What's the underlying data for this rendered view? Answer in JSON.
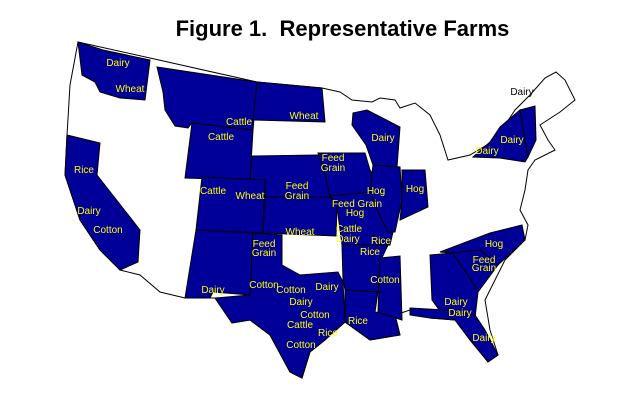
{
  "title": "Figure 1.  Representative Farms",
  "colors": {
    "highlight_state": "#000099",
    "other_state": "#ffffff",
    "border": "#000000",
    "label_on_highlight": "#ffff00",
    "label_on_white": "#000000"
  },
  "highlighted_states": [
    "WA",
    "MT",
    "ND",
    "WY",
    "NE",
    "CO",
    "KS",
    "NM",
    "TX",
    "IA",
    "MO",
    "AR",
    "LA",
    "MS",
    "WI",
    "IL",
    "IN",
    "NY",
    "VT",
    "NC",
    "SC",
    "GA",
    "FL",
    "CA"
  ],
  "labels": [
    {
      "text": "Dairy",
      "state": "WA"
    },
    {
      "text": "Wheat",
      "state": "WA"
    },
    {
      "text": "Cattle",
      "state": "MT"
    },
    {
      "text": "Cattle",
      "state": "WY"
    },
    {
      "text": "Wheat",
      "state": "ND"
    },
    {
      "text": "Feed",
      "state": "IA"
    },
    {
      "text": "Grain",
      "state": "IA"
    },
    {
      "text": "Feed",
      "state": "NE"
    },
    {
      "text": "Grain",
      "state": "NE"
    },
    {
      "text": "Rice",
      "state": "CA"
    },
    {
      "text": "Dairy",
      "state": "CA"
    },
    {
      "text": "Cotton",
      "state": "CA"
    },
    {
      "text": "Cattle",
      "state": "CO"
    },
    {
      "text": "Wheat",
      "state": "CO"
    },
    {
      "text": "Wheat",
      "state": "KS"
    },
    {
      "text": "Dairy",
      "state": "WI"
    },
    {
      "text": "Hog",
      "state": "IL"
    },
    {
      "text": "Hog",
      "state": "IN"
    },
    {
      "text": "Feed Grain",
      "state": "MO"
    },
    {
      "text": "Hog",
      "state": "MO"
    },
    {
      "text": "Cattle",
      "state": "MO"
    },
    {
      "text": "Dairy",
      "state": "MO"
    },
    {
      "text": "Rice",
      "state": "MO"
    },
    {
      "text": "Rice",
      "state": "AR"
    },
    {
      "text": "Feed",
      "state": "TX"
    },
    {
      "text": "Grain",
      "state": "TX"
    },
    {
      "text": "Dairy",
      "state": "NM"
    },
    {
      "text": "Cotton",
      "state": "TX"
    },
    {
      "text": "Cotton",
      "state": "TX"
    },
    {
      "text": "Dairy",
      "state": "TX"
    },
    {
      "text": "Dairy",
      "state": "TX"
    },
    {
      "text": "Cotton",
      "state": "TX"
    },
    {
      "text": "Cattle",
      "state": "TX"
    },
    {
      "text": "Rice",
      "state": "TX"
    },
    {
      "text": "Cotton",
      "state": "TX"
    },
    {
      "text": "Rice",
      "state": "LA"
    },
    {
      "text": "Cotton",
      "state": "MS"
    },
    {
      "text": "Dairy",
      "state": "VT"
    },
    {
      "text": "Dairy",
      "state": "NY"
    },
    {
      "text": "Dairy",
      "state": "NY"
    },
    {
      "text": "Hog",
      "state": "NC"
    },
    {
      "text": "Feed",
      "state": "SC"
    },
    {
      "text": "Grain",
      "state": "SC"
    },
    {
      "text": "Dairy",
      "state": "GA"
    },
    {
      "text": "Dairy",
      "state": "FL"
    },
    {
      "text": "Dairy",
      "state": "FL"
    }
  ]
}
